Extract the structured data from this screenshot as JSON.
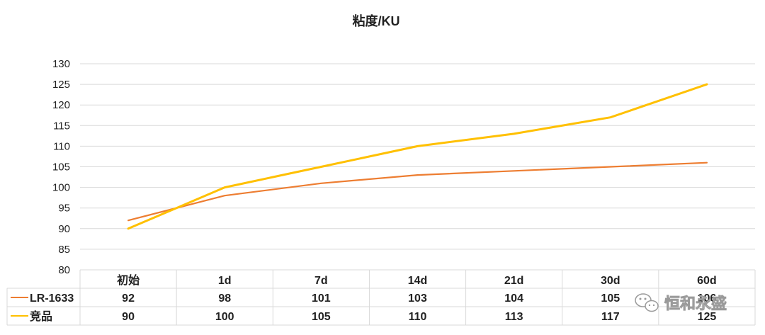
{
  "chart_data": {
    "type": "line",
    "title": "粘度/KU",
    "categories": [
      "初始",
      "1d",
      "7d",
      "14d",
      "21d",
      "30d",
      "60d"
    ],
    "ylim": [
      80,
      130
    ],
    "yticks": [
      80,
      85,
      90,
      95,
      100,
      105,
      110,
      115,
      120,
      125,
      130
    ],
    "grid": true,
    "legend": "data-table",
    "series": [
      {
        "name": "LR-1633",
        "color": "#ED7D31",
        "values": [
          92,
          98,
          101,
          103,
          104,
          105,
          106
        ]
      },
      {
        "name": "竞品",
        "color": "#FFC000",
        "values": [
          90,
          100,
          105,
          110,
          113,
          117,
          125
        ]
      }
    ]
  },
  "watermark": {
    "text": "恒和永盛",
    "icon": "wechat-icon"
  }
}
